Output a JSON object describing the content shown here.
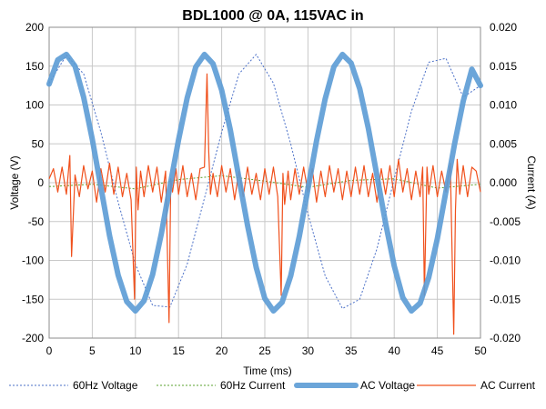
{
  "chart_data": {
    "type": "line",
    "title": "BDL1000 @ 0A, 115VAC in",
    "xlabel": "Time (ms)",
    "ylabel_left": "Voltage (V)",
    "ylabel_right": "Current (A)",
    "xlim": [
      0,
      50
    ],
    "ylim_left": [
      -200,
      200
    ],
    "ylim_right": [
      -0.02,
      0.02
    ],
    "x_ticks": [
      "0",
      "5",
      "10",
      "15",
      "20",
      "25",
      "30",
      "35",
      "40",
      "45",
      "50"
    ],
    "y_ticks_left": [
      "200",
      "150",
      "100",
      "50",
      "0",
      "-50",
      "-100",
      "-150",
      "-200"
    ],
    "y_ticks_right": [
      "0.020",
      "0.015",
      "0.010",
      "0.005",
      "0.000",
      "-0.005",
      "-0.010",
      "-0.015",
      "-0.020"
    ],
    "grid": true,
    "legend_position": "bottom",
    "series": [
      {
        "name": "60Hz Voltage",
        "axis": "left",
        "color": "#4a6fc7",
        "style": "dotted",
        "x": [
          0,
          2,
          4,
          6,
          8,
          10,
          12,
          14,
          16,
          18,
          20,
          22,
          24,
          26,
          28,
          30,
          32,
          34,
          36,
          38,
          40,
          42,
          44,
          46,
          48,
          50
        ],
        "y": [
          128,
          164,
          140,
          65,
          -25,
          -105,
          -158,
          -160,
          -105,
          -20,
          65,
          140,
          165,
          128,
          50,
          -40,
          -120,
          -162,
          -150,
          -85,
          5,
          92,
          155,
          160,
          110,
          125
        ]
      },
      {
        "name": "60Hz Current",
        "axis": "right",
        "color": "#5aa02c",
        "style": "dotted",
        "x": [
          0,
          5,
          10,
          15,
          20,
          25,
          30,
          35,
          40,
          45,
          50
        ],
        "y": [
          -0.0005,
          -0.0002,
          -0.0008,
          0.0004,
          0.0009,
          0.0002,
          -0.0006,
          0.0003,
          0.0005,
          -0.0007,
          -0.0002
        ]
      },
      {
        "name": "AC Voltage",
        "axis": "left",
        "color": "#5b9bd5",
        "style": "thick",
        "x": [
          0,
          1,
          2,
          3,
          4,
          5,
          6,
          7,
          8,
          9,
          10,
          11,
          12,
          13,
          14,
          15,
          16,
          17,
          18,
          19,
          20,
          21,
          22,
          23,
          24,
          25,
          26,
          27,
          28,
          29,
          30,
          31,
          32,
          33,
          34,
          35,
          36,
          37,
          38,
          39,
          40,
          41,
          42,
          43,
          44,
          45,
          46,
          47,
          48,
          49,
          50
        ],
        "y": [
          127,
          158,
          165,
          150,
          110,
          56,
          -6,
          -68,
          -119,
          -153,
          -165,
          -152,
          -118,
          -66,
          -5,
          55,
          109,
          149,
          165,
          153,
          119,
          68,
          6,
          -55,
          -109,
          -149,
          -165,
          -154,
          -120,
          -69,
          -8,
          54,
          108,
          149,
          165,
          154,
          121,
          70,
          9,
          -52,
          -107,
          -148,
          -165,
          -155,
          -122,
          -72,
          -11,
          50,
          105,
          146,
          125
        ]
      },
      {
        "name": "AC Current",
        "axis": "right",
        "color": "#f0501c",
        "style": "solid",
        "x": [
          0,
          0.5,
          1,
          1.5,
          2,
          2.4,
          2.6,
          3,
          3.5,
          4,
          4.5,
          5,
          5.5,
          6,
          6.5,
          7,
          7.5,
          8,
          8.5,
          9,
          9.5,
          9.9,
          10.1,
          10.3,
          10.6,
          11,
          11.5,
          12,
          12.5,
          13,
          13.5,
          13.9,
          14.1,
          14.3,
          14.7,
          15,
          15.5,
          16,
          16.5,
          17,
          17.5,
          18,
          18.3,
          18.5,
          18.7,
          19,
          19.5,
          20,
          20.5,
          21,
          21.5,
          22,
          22.5,
          23,
          23.5,
          24,
          24.5,
          25,
          25.5,
          26,
          26.5,
          26.9,
          27.1,
          27.3,
          27.7,
          28,
          28.5,
          29,
          29.5,
          30,
          30.5,
          31,
          31.5,
          32,
          32.5,
          33,
          33.5,
          34,
          34.5,
          35,
          35.5,
          36,
          36.5,
          37,
          37.5,
          38,
          38.5,
          39,
          39.5,
          40,
          40.5,
          41,
          41.5,
          42,
          42.5,
          43,
          43.3,
          43.5,
          43.8,
          44,
          44.5,
          45,
          45.5,
          46,
          46.5,
          46.9,
          47.1,
          47.3,
          47.6,
          48,
          48.5,
          49,
          49.5,
          50
        ],
        "y": [
          0.0005,
          0.0018,
          -0.0012,
          0.002,
          -0.0015,
          0.0035,
          -0.0095,
          0.001,
          -0.0018,
          0.0022,
          -0.0008,
          0.0015,
          -0.0025,
          0.0018,
          -0.0012,
          0.0025,
          -0.0015,
          0.002,
          -0.0018,
          0.0012,
          -0.0022,
          -0.015,
          0.002,
          -0.0035,
          0.0015,
          -0.0018,
          0.0022,
          -0.0012,
          0.002,
          -0.0025,
          0.0015,
          -0.018,
          0.0005,
          -0.0012,
          0.0018,
          -0.0015,
          0.0022,
          -0.0018,
          0.0012,
          -0.0022,
          0.0018,
          0.002,
          0.014,
          0.004,
          -0.0015,
          0.0012,
          -0.0018,
          0.0022,
          -0.0012,
          0.0018,
          -0.0022,
          0.0015,
          -0.0018,
          0.002,
          -0.0015,
          0.0012,
          -0.0022,
          0.0018,
          -0.0015,
          0.002,
          -0.0018,
          -0.0145,
          0.0012,
          -0.0028,
          0.0015,
          -0.0022,
          0.0018,
          -0.0015,
          0.002,
          -0.0012,
          0.0018,
          -0.0025,
          0.0015,
          -0.0018,
          0.0022,
          -0.0012,
          0.0018,
          -0.0022,
          0.0015,
          -0.0018,
          0.002,
          -0.0015,
          0.0022,
          -0.0018,
          0.0012,
          -0.0025,
          0.0018,
          -0.0015,
          0.0022,
          -0.0018,
          0.003,
          -0.0012,
          0.0018,
          -0.0022,
          0.0015,
          -0.0018,
          0.002,
          -0.0145,
          0.002,
          -0.0015,
          0.0022,
          -0.0018,
          0.0015,
          -0.0012,
          0.0025,
          -0.0195,
          -0.0035,
          0.003,
          -0.0015,
          0.0022,
          -0.0018,
          0.002,
          0.0015,
          -0.0012
        ]
      }
    ]
  }
}
